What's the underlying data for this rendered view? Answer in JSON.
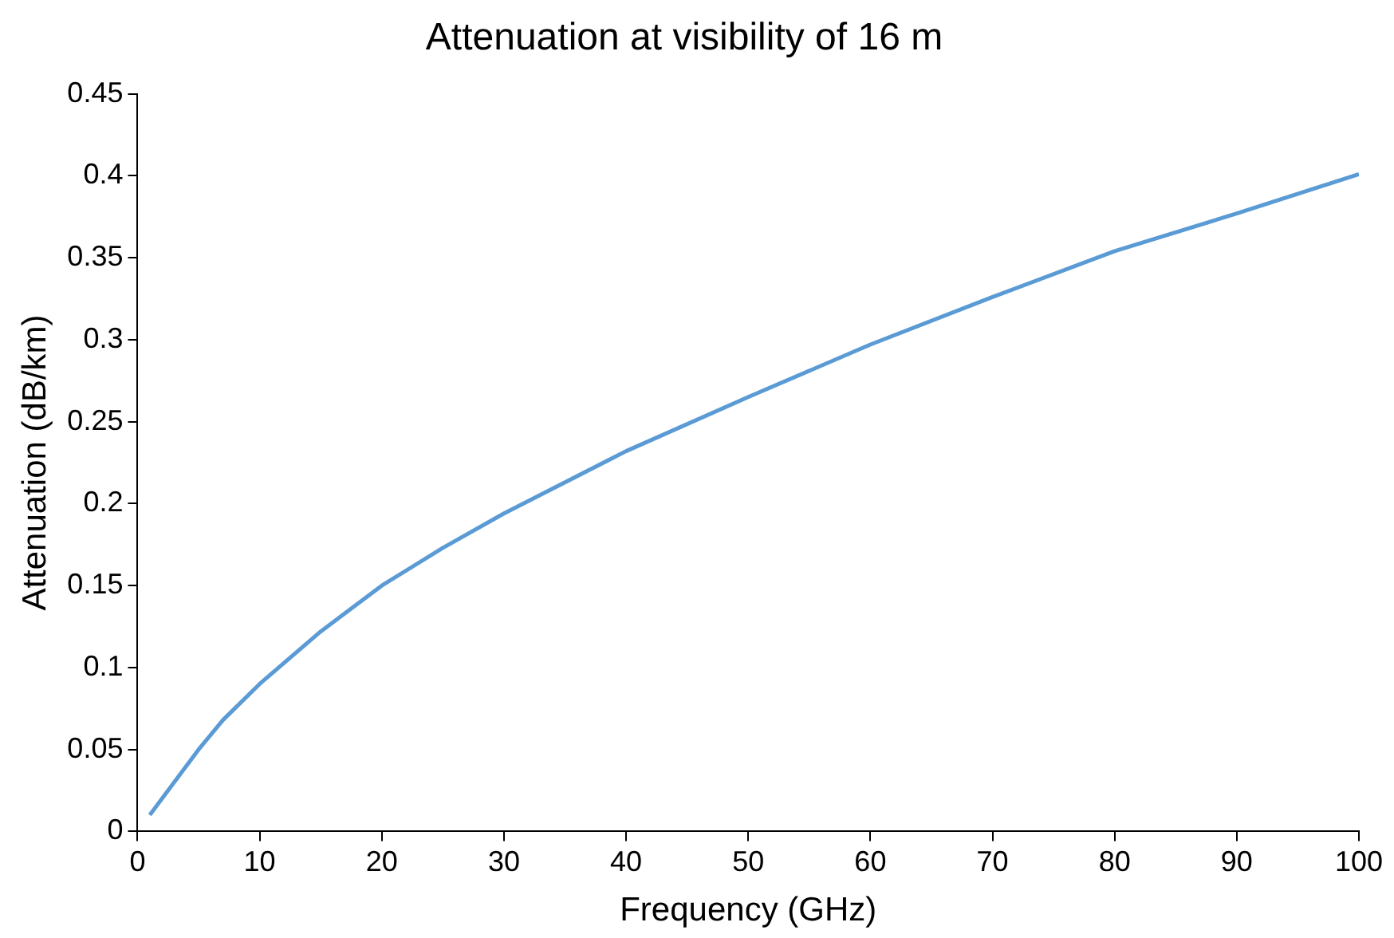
{
  "chart_data": {
    "type": "line",
    "title": "Attenuation at visibility of 16 m",
    "xlabel": "Frequency (GHz)",
    "ylabel": "Attenuation (dB/km)",
    "x": [
      1,
      3,
      5,
      7,
      10,
      15,
      20,
      25,
      30,
      40,
      50,
      60,
      70,
      80,
      90,
      100
    ],
    "series": [
      {
        "color": "#5b9bd5",
        "values": [
          0.01,
          0.03,
          0.05,
          0.068,
          0.09,
          0.122,
          0.15,
          0.173,
          0.194,
          0.232,
          0.265,
          0.297,
          0.326,
          0.354,
          0.377,
          0.401
        ]
      }
    ],
    "xlim": [
      0,
      100
    ],
    "xticks": [
      0,
      10,
      20,
      30,
      40,
      50,
      60,
      70,
      80,
      90,
      100
    ],
    "ylim": [
      0,
      0.45
    ],
    "yticks": [
      0,
      0.05,
      0.1,
      0.15,
      0.2,
      0.25,
      0.3,
      0.35,
      0.4,
      0.45
    ],
    "grid": false,
    "legend": false,
    "marker": "none",
    "line_style": "solid"
  }
}
